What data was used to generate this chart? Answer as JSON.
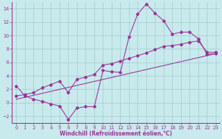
{
  "line1_x": [
    0,
    1,
    2,
    3,
    4,
    5,
    6,
    7,
    8,
    9,
    10,
    11,
    12,
    13,
    14,
    15,
    16,
    17,
    18,
    19,
    20,
    21,
    22,
    23
  ],
  "line1_y": [
    2.5,
    1.0,
    0.5,
    0.2,
    -0.2,
    -0.5,
    -2.5,
    -0.8,
    -0.6,
    -0.6,
    4.8,
    4.6,
    4.5,
    9.8,
    13.2,
    14.7,
    13.3,
    12.2,
    10.2,
    10.5,
    10.5,
    9.5,
    7.2,
    7.3
  ],
  "line2_x": [
    0,
    1,
    2,
    3,
    4,
    5,
    6,
    7,
    8,
    9,
    10,
    11,
    12,
    13,
    14,
    15,
    16,
    17,
    18,
    19,
    20,
    21,
    22,
    23
  ],
  "line2_y": [
    1.0,
    1.2,
    1.5,
    2.2,
    2.7,
    3.2,
    1.5,
    3.5,
    3.8,
    4.2,
    5.6,
    5.8,
    6.2,
    6.6,
    7.0,
    7.4,
    7.9,
    8.4,
    8.5,
    8.7,
    9.0,
    9.2,
    7.5,
    7.5
  ],
  "line3_x": [
    0,
    23
  ],
  "line3_y": [
    0.5,
    7.3
  ],
  "line_color": "#993399",
  "bg_color": "#c8eaec",
  "grid_color": "#a0c8cc",
  "xlabel": "Windchill (Refroidissement éolien,°C)",
  "ylim": [
    -3,
    15
  ],
  "xlim": [
    -0.5,
    23.5
  ],
  "yticks": [
    -2,
    0,
    2,
    4,
    6,
    8,
    10,
    12,
    14
  ],
  "xticks": [
    0,
    1,
    2,
    3,
    4,
    5,
    6,
    7,
    8,
    9,
    10,
    11,
    12,
    13,
    14,
    15,
    16,
    17,
    18,
    19,
    20,
    21,
    22,
    23
  ],
  "tick_fontsize": 5.0,
  "xlabel_fontsize": 5.5
}
